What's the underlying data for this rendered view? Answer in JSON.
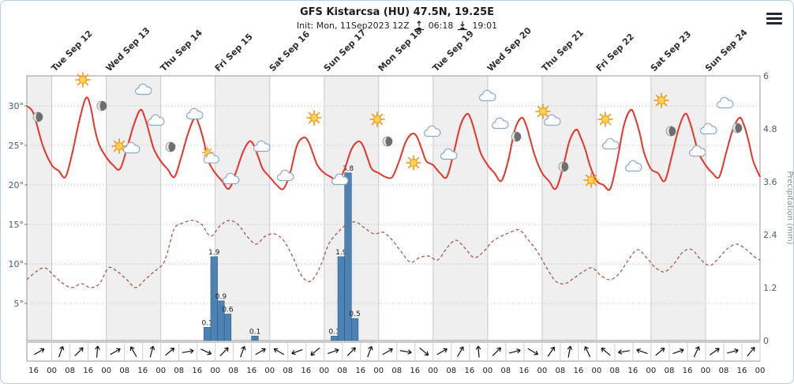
{
  "header": {
    "title": "GFS Kistarcsa (HU) 47.5N, 19.25E",
    "init_label": "Init: Mon, 11Sep2023 12Z",
    "sunrise": "06:18",
    "sunset": "19:01"
  },
  "icons": {
    "menu": "hamburger-menu-icon",
    "sunrise": "sunrise-icon",
    "sunset": "sunset-icon"
  },
  "chart_data": {
    "type": "line",
    "subtype": "meteogram",
    "x_hours_range": [
      1,
      324
    ],
    "colors": {
      "temperature": "#e8352b",
      "dewpoint": "#a65b4b",
      "precipitation": "#4d82b4",
      "band": "#efefef"
    },
    "day_labels": [
      {
        "label": "Tue Sep 12",
        "hour": 12
      },
      {
        "label": "Wed Sep 13",
        "hour": 36
      },
      {
        "label": "Thu Sep 14",
        "hour": 60
      },
      {
        "label": "Fri Sep 15",
        "hour": 84
      },
      {
        "label": "Sat Sep 16",
        "hour": 108
      },
      {
        "label": "Sun Sep 17",
        "hour": 132
      },
      {
        "label": "Mon Sep 18",
        "hour": 156
      },
      {
        "label": "Tue Sep 19",
        "hour": 180
      },
      {
        "label": "Wed Sep 20",
        "hour": 204
      },
      {
        "label": "Thu Sep 21",
        "hour": 228
      },
      {
        "label": "Fri Sep 22",
        "hour": 252
      },
      {
        "label": "Sat Sep 23",
        "hour": 276
      },
      {
        "label": "Sun Sep 24",
        "hour": 300
      }
    ],
    "temp_axis": {
      "ticks": [
        5,
        10,
        15,
        20,
        25,
        30
      ],
      "tick_labels": [
        "5°",
        "10°",
        "15°",
        "20°",
        "25°",
        "30°"
      ]
    },
    "precip_axis": {
      "label": "Precipitation (mm)",
      "min": 0,
      "max": 6,
      "ticks": [
        0,
        1.2,
        2.4,
        3.6,
        4.8,
        6
      ],
      "tick_labels": [
        "0",
        "1.2",
        "2.4",
        "3.6",
        "4.8",
        "6"
      ]
    },
    "temperature": {
      "points": [
        [
          1,
          30
        ],
        [
          4,
          29
        ],
        [
          8,
          25
        ],
        [
          12,
          22.5
        ],
        [
          15,
          21.8
        ],
        [
          18,
          21
        ],
        [
          21,
          24
        ],
        [
          24,
          28
        ],
        [
          27,
          31
        ],
        [
          29,
          30
        ],
        [
          31,
          27
        ],
        [
          33,
          25
        ],
        [
          36,
          23.5
        ],
        [
          39,
          22.5
        ],
        [
          42,
          22
        ],
        [
          45,
          24.5
        ],
        [
          48,
          27.5
        ],
        [
          51,
          29.5
        ],
        [
          53,
          28.5
        ],
        [
          55,
          26.5
        ],
        [
          57,
          24.5
        ],
        [
          60,
          23
        ],
        [
          63,
          22
        ],
        [
          66,
          21
        ],
        [
          69,
          23.5
        ],
        [
          72,
          26.5
        ],
        [
          75,
          28.5
        ],
        [
          77,
          27.5
        ],
        [
          79,
          25.5
        ],
        [
          81,
          23
        ],
        [
          84,
          21.5
        ],
        [
          87,
          20.5
        ],
        [
          90,
          19.5
        ],
        [
          93,
          21.5
        ],
        [
          96,
          24
        ],
        [
          99,
          25.5
        ],
        [
          101,
          25
        ],
        [
          103,
          23.5
        ],
        [
          105,
          22
        ],
        [
          108,
          21
        ],
        [
          111,
          20
        ],
        [
          114,
          19.5
        ],
        [
          117,
          21.5
        ],
        [
          120,
          25
        ],
        [
          123,
          26
        ],
        [
          125,
          25.5
        ],
        [
          127,
          24
        ],
        [
          129,
          22.5
        ],
        [
          132,
          21.5
        ],
        [
          135,
          21
        ],
        [
          138,
          20.5
        ],
        [
          141,
          22
        ],
        [
          144,
          24.5
        ],
        [
          147,
          25.5
        ],
        [
          149,
          25
        ],
        [
          151,
          23.5
        ],
        [
          153,
          22
        ],
        [
          156,
          21.5
        ],
        [
          159,
          21
        ],
        [
          162,
          21
        ],
        [
          165,
          23
        ],
        [
          168,
          25.5
        ],
        [
          171,
          26.5
        ],
        [
          173,
          26
        ],
        [
          175,
          24.5
        ],
        [
          177,
          23
        ],
        [
          180,
          22.5
        ],
        [
          183,
          21.5
        ],
        [
          186,
          21
        ],
        [
          189,
          24
        ],
        [
          192,
          27.5
        ],
        [
          195,
          29
        ],
        [
          197,
          28
        ],
        [
          199,
          26
        ],
        [
          201,
          24
        ],
        [
          204,
          22.5
        ],
        [
          207,
          21.5
        ],
        [
          210,
          20.5
        ],
        [
          213,
          23
        ],
        [
          216,
          27
        ],
        [
          219,
          28.5
        ],
        [
          221,
          27.5
        ],
        [
          223,
          25.5
        ],
        [
          225,
          23.5
        ],
        [
          228,
          21.5
        ],
        [
          231,
          20.5
        ],
        [
          234,
          19.5
        ],
        [
          237,
          22
        ],
        [
          240,
          25.5
        ],
        [
          243,
          27
        ],
        [
          245,
          26
        ],
        [
          247,
          24.5
        ],
        [
          249,
          22.5
        ],
        [
          252,
          20.5
        ],
        [
          255,
          20
        ],
        [
          258,
          19.5
        ],
        [
          261,
          23
        ],
        [
          264,
          27.5
        ],
        [
          267,
          29.5
        ],
        [
          269,
          28.5
        ],
        [
          271,
          26.5
        ],
        [
          273,
          24
        ],
        [
          276,
          22
        ],
        [
          279,
          21.5
        ],
        [
          282,
          20.5
        ],
        [
          285,
          23.5
        ],
        [
          288,
          27
        ],
        [
          291,
          29
        ],
        [
          293,
          28
        ],
        [
          295,
          26
        ],
        [
          297,
          24
        ],
        [
          300,
          22.5
        ],
        [
          303,
          21.5
        ],
        [
          306,
          21
        ],
        [
          309,
          24
        ],
        [
          312,
          27
        ],
        [
          315,
          28.5
        ],
        [
          317,
          27.5
        ],
        [
          319,
          25.5
        ],
        [
          321,
          23
        ],
        [
          324,
          21
        ]
      ]
    },
    "dewpoint": {
      "points": [
        [
          1,
          8
        ],
        [
          5,
          9
        ],
        [
          9,
          9.5
        ],
        [
          13,
          8.5
        ],
        [
          17,
          7.5
        ],
        [
          21,
          7
        ],
        [
          25,
          7.5
        ],
        [
          29,
          7
        ],
        [
          33,
          7.5
        ],
        [
          37,
          9.5
        ],
        [
          41,
          9
        ],
        [
          45,
          8
        ],
        [
          49,
          7
        ],
        [
          53,
          8
        ],
        [
          57,
          9
        ],
        [
          61,
          10
        ],
        [
          63,
          11.5
        ],
        [
          66,
          14.5
        ],
        [
          70,
          15.2
        ],
        [
          74,
          15.5
        ],
        [
          78,
          15
        ],
        [
          82,
          13.5
        ],
        [
          86,
          14.8
        ],
        [
          90,
          15.5
        ],
        [
          94,
          15
        ],
        [
          98,
          13.5
        ],
        [
          102,
          12.5
        ],
        [
          106,
          13.5
        ],
        [
          110,
          13.8
        ],
        [
          114,
          13
        ],
        [
          118,
          11
        ],
        [
          122,
          8.5
        ],
        [
          126,
          7.8
        ],
        [
          130,
          9.5
        ],
        [
          134,
          12.5
        ],
        [
          138,
          14
        ],
        [
          142,
          15
        ],
        [
          146,
          15.3
        ],
        [
          150,
          14.5
        ],
        [
          154,
          13.8
        ],
        [
          158,
          14
        ],
        [
          162,
          13
        ],
        [
          166,
          11.5
        ],
        [
          170,
          10.2
        ],
        [
          174,
          10.8
        ],
        [
          178,
          11
        ],
        [
          182,
          10.5
        ],
        [
          186,
          12
        ],
        [
          190,
          13
        ],
        [
          194,
          12
        ],
        [
          198,
          10.8
        ],
        [
          202,
          11.5
        ],
        [
          206,
          12.8
        ],
        [
          210,
          13.5
        ],
        [
          214,
          14
        ],
        [
          218,
          14.3
        ],
        [
          222,
          13
        ],
        [
          226,
          11.5
        ],
        [
          230,
          9.5
        ],
        [
          234,
          7.8
        ],
        [
          238,
          7.5
        ],
        [
          242,
          8.2
        ],
        [
          246,
          9
        ],
        [
          250,
          9.5
        ],
        [
          254,
          8.5
        ],
        [
          258,
          8
        ],
        [
          262,
          8.8
        ],
        [
          266,
          10.5
        ],
        [
          270,
          11.8
        ],
        [
          274,
          10.8
        ],
        [
          278,
          9.5
        ],
        [
          282,
          9
        ],
        [
          286,
          10
        ],
        [
          290,
          11.5
        ],
        [
          294,
          11.8
        ],
        [
          298,
          10.5
        ],
        [
          302,
          9.8
        ],
        [
          306,
          10.8
        ],
        [
          310,
          12
        ],
        [
          314,
          12.5
        ],
        [
          318,
          11.8
        ],
        [
          322,
          10.8
        ],
        [
          324,
          10.5
        ]
      ]
    },
    "precipitation": {
      "bar_hours_width": 3,
      "bars": [
        {
          "hour": 79,
          "value": 0.3
        },
        {
          "hour": 82,
          "value": 1.9
        },
        {
          "hour": 85,
          "value": 0.9
        },
        {
          "hour": 88,
          "value": 0.6
        },
        {
          "hour": 100,
          "value": 0.1
        },
        {
          "hour": 135,
          "value": 0.1
        },
        {
          "hour": 138,
          "value": 1.9
        },
        {
          "hour": 141,
          "value": 3.8
        },
        {
          "hour": 144,
          "value": 0.5
        }
      ]
    },
    "weather_icons": [
      [
        47,
        147,
        "moon"
      ],
      [
        104,
        100,
        "sun"
      ],
      [
        128,
        133,
        "moon"
      ],
      [
        150,
        184,
        "sun"
      ],
      [
        166,
        187,
        "cloud"
      ],
      [
        181,
        113,
        "cloud"
      ],
      [
        197,
        152,
        "cloud"
      ],
      [
        215,
        185,
        "moon"
      ],
      [
        246,
        144,
        "cloud"
      ],
      [
        265,
        197,
        "sun-cloud"
      ],
      [
        292,
        226,
        "cloud"
      ],
      [
        331,
        185,
        "cloud"
      ],
      [
        361,
        222,
        "cloud"
      ],
      [
        397,
        148,
        "sun"
      ],
      [
        430,
        227,
        "cloud"
      ],
      [
        477,
        150,
        "sun"
      ],
      [
        490,
        178,
        "moon"
      ],
      [
        523,
        205,
        "sun"
      ],
      [
        547,
        166,
        "cloud"
      ],
      [
        568,
        195,
        "cloud"
      ],
      [
        617,
        121,
        "cloud"
      ],
      [
        633,
        156,
        "cloud"
      ],
      [
        653,
        172,
        "moon"
      ],
      [
        687,
        140,
        "sun"
      ],
      [
        699,
        152,
        "cloud"
      ],
      [
        713,
        210,
        "moon"
      ],
      [
        748,
        227,
        "sun"
      ],
      [
        766,
        150,
        "sun"
      ],
      [
        773,
        182,
        "cloud"
      ],
      [
        802,
        210,
        "cloud"
      ],
      [
        837,
        126,
        "sun"
      ],
      [
        849,
        165,
        "moon"
      ],
      [
        883,
        191,
        "cloud"
      ],
      [
        897,
        163,
        "cloud"
      ],
      [
        918,
        130,
        "cloud"
      ],
      [
        933,
        161,
        "moon"
      ]
    ],
    "wind": {
      "angles": [
        -30,
        -70,
        -45,
        -85,
        -30,
        -120,
        -75,
        -40,
        -10,
        25,
        -45,
        -70,
        -30,
        -150,
        160,
        140,
        -20,
        -45,
        -70,
        -30,
        10,
        40,
        -30,
        -60,
        -95,
        -45,
        -15,
        30,
        -55,
        -80,
        -115,
        -140,
        170,
        -160,
        -40,
        -20,
        -65,
        -35,
        -15,
        -50
      ]
    },
    "time_labels": [
      "16",
      "00",
      "08",
      "16",
      "00",
      "08",
      "16",
      "00",
      "08",
      "16",
      "00",
      "08",
      "16",
      "00",
      "08",
      "16",
      "00",
      "08",
      "16",
      "00",
      "08",
      "16",
      "00",
      "08",
      "16",
      "00",
      "08",
      "16",
      "00",
      "08",
      "16",
      "00",
      "08",
      "16",
      "00",
      "08",
      "16",
      "00",
      "08",
      "16",
      "00"
    ]
  }
}
